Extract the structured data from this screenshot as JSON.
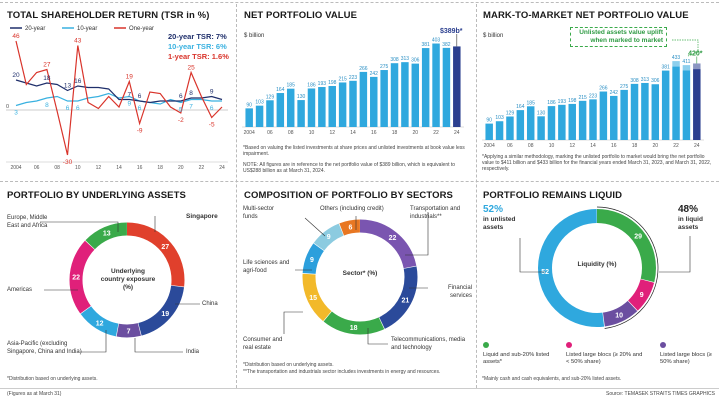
{
  "chart_data": [
    {
      "type": "line",
      "title": "TOTAL SHAREHOLDER RETURN (TSR in %)",
      "x": [
        2004,
        2005,
        2006,
        2007,
        2008,
        2009,
        2010,
        2011,
        2012,
        2013,
        2014,
        2015,
        2016,
        2017,
        2018,
        2019,
        2020,
        2021,
        2022,
        2023,
        2024
      ],
      "tick_labels": [
        "2004",
        "06",
        "08",
        "10",
        "12",
        "14",
        "16",
        "18",
        "20",
        "22",
        "24"
      ],
      "ylim": [
        -32,
        48
      ],
      "zero_label": "0",
      "legend_position": "top",
      "series": [
        {
          "name": "20-year",
          "color": "#1f2f6b",
          "values": [
            20,
            18,
            16,
            18,
            17,
            13,
            16,
            15,
            15,
            14,
            7,
            7,
            6,
            5,
            6,
            6,
            6,
            8,
            8,
            9,
            7
          ],
          "labeled_years": [
            2004,
            2007,
            2009,
            2010,
            2015,
            2016,
            2020,
            2021,
            2023
          ]
        },
        {
          "name": "10-year",
          "color": "#39b1e0",
          "values": [
            3,
            5,
            6,
            8,
            9,
            6,
            6,
            8,
            9,
            11,
            8,
            9,
            6,
            5,
            4,
            7,
            5,
            7,
            7,
            6,
            6
          ],
          "labeled_years": [
            2004,
            2007,
            2009,
            2010,
            2015,
            2016,
            2020,
            2021,
            2023
          ]
        },
        {
          "name": "One-year",
          "color": "#d9342b",
          "values": [
            46,
            17,
            25,
            27,
            -1,
            -30,
            43,
            5,
            1,
            9,
            2,
            19,
            -9,
            12,
            11,
            2,
            -2,
            25,
            9,
            -5,
            2
          ],
          "labeled_years": [
            2004,
            2007,
            2009,
            2010,
            2015,
            2016,
            2020,
            2021,
            2023
          ]
        }
      ],
      "summary": [
        {
          "text": "20-year TSR: 7%",
          "color": "#1f2f6b"
        },
        {
          "text": "10-year TSR: 6%",
          "color": "#39b1e0"
        },
        {
          "text": "1-year TSR: 1.6%",
          "color": "#d9342b"
        }
      ]
    },
    {
      "type": "bar",
      "title": "NET PORTFOLIO VALUE",
      "ylabel": "$ billion",
      "x": [
        2004,
        2005,
        2006,
        2007,
        2008,
        2009,
        2010,
        2011,
        2012,
        2013,
        2014,
        2015,
        2016,
        2017,
        2018,
        2019,
        2020,
        2021,
        2022,
        2023,
        2024
      ],
      "tick_labels": [
        "2004",
        "06",
        "08",
        "10",
        "12",
        "14",
        "16",
        "18",
        "20",
        "22",
        "24"
      ],
      "values": [
        90,
        103,
        129,
        164,
        185,
        130,
        186,
        193,
        198,
        215,
        223,
        266,
        242,
        275,
        308,
        313,
        306,
        381,
        403,
        382,
        389
      ],
      "highlight_label": "$389b*",
      "ylim": [
        0,
        420
      ],
      "notes": [
        "*Based on valuing the listed investments at share prices and unlisted investments at book value less impairment.",
        "NOTE: All figures are in reference to the net portfolio value of $389 billion, which is equivalent to US$288 billion as at March 31, 2024."
      ]
    },
    {
      "type": "bar",
      "title": "MARK-TO-MARKET NET PORTFOLIO VALUE",
      "ylabel": "$ billion",
      "x": [
        2004,
        2005,
        2006,
        2007,
        2008,
        2009,
        2010,
        2011,
        2012,
        2013,
        2014,
        2015,
        2016,
        2017,
        2018,
        2019,
        2020,
        2021,
        2022,
        2023,
        2024
      ],
      "tick_labels": [
        "2004",
        "06",
        "08",
        "10",
        "12",
        "14",
        "16",
        "18",
        "20",
        "22",
        "24"
      ],
      "values": [
        90,
        103,
        129,
        164,
        185,
        130,
        186,
        193,
        198,
        215,
        223,
        266,
        242,
        275,
        308,
        313,
        306,
        381,
        433,
        411,
        420
      ],
      "book_values": [
        null,
        null,
        null,
        null,
        null,
        null,
        null,
        null,
        null,
        null,
        null,
        null,
        null,
        null,
        null,
        null,
        null,
        null,
        403,
        382,
        389
      ],
      "highlight_label": "420*",
      "annotation": "Unlisted assets value uplift when marked to market",
      "ylim": [
        0,
        450
      ],
      "notes": [
        "*Applying a similar methodology, marking the unlisted portfolio to market would bring the net portfolio value to $411 billion and $433 billion for the financial years ended March 31, 2023, and March 31, 2022, respectively."
      ]
    },
    {
      "type": "pie",
      "title": "PORTFOLIO BY UNDERLYING ASSETS",
      "center_label": "Underlying country exposure (%)",
      "slices": [
        {
          "label": "Singapore",
          "value": 27,
          "color": "#e0402c"
        },
        {
          "label": "China",
          "value": 19,
          "color": "#2b4a9a"
        },
        {
          "label": "India",
          "value": 7,
          "color": "#6b4ea0"
        },
        {
          "label": "Asia-Pacific (excluding Singapore, China and India)",
          "value": 12,
          "color": "#2fa8de"
        },
        {
          "label": "Americas",
          "value": 22,
          "color": "#e0207a"
        },
        {
          "label": "Europe, Middle East and Africa",
          "value": 13,
          "color": "#3aaa4a"
        }
      ],
      "notes": [
        "*Distribution based on underlying assets."
      ]
    },
    {
      "type": "pie",
      "title": "COMPOSITION OF PORTFOLIO BY SECTORS",
      "center_label": "Sector* (%)",
      "slices": [
        {
          "label": "Transportation and industrials**",
          "value": 22,
          "color": "#7a55b0"
        },
        {
          "label": "Financial services",
          "value": 21,
          "color": "#2b4a9a"
        },
        {
          "label": "Telecommunications, media and technology",
          "value": 18,
          "color": "#3aaa4a"
        },
        {
          "label": "Consumer and real estate",
          "value": 15,
          "color": "#f2b92a"
        },
        {
          "label": "Life sciences and agri-food",
          "value": 9,
          "color": "#2c9fdc"
        },
        {
          "label": "Multi-sector funds",
          "value": 9,
          "color": "#8ccbe0"
        },
        {
          "label": "Others (including credit)",
          "value": 6,
          "color": "#e87722"
        }
      ],
      "notes": [
        "*Distribution based on underlying assets.",
        "**The transportation and industrials sector includes investments in energy and resources."
      ]
    },
    {
      "type": "pie",
      "title": "PORTFOLIO REMAINS LIQUID",
      "center_label": "Liquidity (%)",
      "slices": [
        {
          "label": "Liquid and sub-20% listed assets*",
          "value": 29,
          "color": "#3aaa4a"
        },
        {
          "label": "Listed large blocs (≥ 20% and < 50% share)",
          "value": 9,
          "color": "#e0207a"
        },
        {
          "label": "Listed large blocs (≥ 50% share)",
          "value": 10,
          "color": "#6b4ea0"
        },
        {
          "label": "Unlisted",
          "value": 52,
          "color": "#2fa8de"
        }
      ],
      "callouts": [
        {
          "pct": "52%",
          "text": "in unlisted assets",
          "color": "#2fa8de"
        },
        {
          "pct": "48%",
          "text": "in liquid assets",
          "color": "#222222"
        }
      ],
      "notes": [
        "*Mainly cash and cash equivalents, and sub-20% listed assets."
      ]
    }
  ],
  "footer": {
    "left": "(Figures as at March 31)",
    "right": "Source: TEMASEK  STRAITS TIMES GRAPHICS"
  }
}
